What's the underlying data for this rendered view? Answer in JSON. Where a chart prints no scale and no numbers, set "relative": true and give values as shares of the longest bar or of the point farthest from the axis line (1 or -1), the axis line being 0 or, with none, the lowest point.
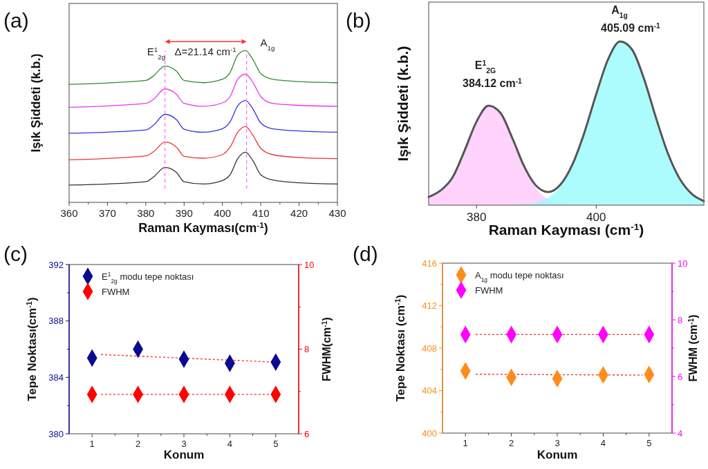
{
  "chart_data": [
    {
      "type": "line",
      "title": "(a)",
      "xlabel": "Raman Kayması(cm$^{-1}$)",
      "ylabel": "Işık Şiddeti (k.b.)",
      "relative": true,
      "xlim": [
        360,
        430
      ],
      "xticks": [
        360,
        {
          "value": 365,
          "label": null
        },
        370,
        {
          "value": 375,
          "label": null
        },
        380,
        {
          "value": 385,
          "label": null
        },
        390,
        {
          "value": 395,
          "label": null
        },
        400,
        {
          "value": 405,
          "label": null
        },
        410,
        {
          "value": 415,
          "label": null
        },
        420,
        {
          "value": 425,
          "label": null
        },
        430
      ],
      "x": [
        360,
        380,
        382,
        385,
        388,
        390,
        395,
        400,
        402,
        404,
        406,
        408,
        410,
        413,
        420,
        430
      ],
      "series": [
        {
          "color": "#333333",
          "values": [
            0.114,
            0.136,
            0.167,
            0.23,
            0.197,
            0.136,
            0.121,
            0.144,
            0.182,
            0.288,
            0.33,
            0.273,
            0.182,
            0.148,
            0.129,
            0.121
          ]
        },
        {
          "color": "#ee3333",
          "values": [
            0.28,
            0.306,
            0.333,
            0.397,
            0.364,
            0.303,
            0.291,
            0.315,
            0.364,
            0.462,
            0.5,
            0.439,
            0.356,
            0.315,
            0.295,
            0.288
          ]
        },
        {
          "color": "#3333dd",
          "values": [
            0.455,
            0.477,
            0.508,
            0.58,
            0.545,
            0.482,
            0.462,
            0.485,
            0.53,
            0.636,
            0.67,
            0.614,
            0.523,
            0.485,
            0.47,
            0.462
          ]
        },
        {
          "color": "#ee33ee",
          "values": [
            0.626,
            0.652,
            0.679,
            0.747,
            0.712,
            0.652,
            0.633,
            0.655,
            0.697,
            0.811,
            0.845,
            0.788,
            0.697,
            0.652,
            0.639,
            0.633
          ]
        },
        {
          "color": "#2e8b2e",
          "values": [
            0.777,
            0.803,
            0.833,
            0.898,
            0.864,
            0.803,
            0.788,
            0.811,
            0.856,
            0.97,
            1,
            0.939,
            0.848,
            0.811,
            0.795,
            0.788
          ]
        }
      ],
      "ref_lines": [
        {
          "axis": "x",
          "value": 385,
          "color": "#ff66ff",
          "line_style": "dashed"
        },
        {
          "axis": "x",
          "value": 406.3,
          "color": "#ff66ff",
          "line_style": "dashed"
        }
      ],
      "annotations": [
        "E$^{1}$$_{2g}$",
        "Δ=21.14 cm$^{-1}$",
        "A$_{1g}$"
      ]
    },
    {
      "type": "area",
      "title": "(b)",
      "xlabel": "Raman Kayması (cm$^{-1}$)",
      "ylabel": "Işık Şiddeti (k.b.)",
      "relative": true,
      "xlim": [
        372,
        418
      ],
      "xticks": [
        380,
        400
      ],
      "x": [
        372,
        374,
        376,
        378,
        380,
        382,
        384,
        386,
        388,
        390,
        392,
        394,
        396,
        398,
        400,
        402,
        404,
        406,
        408,
        410,
        412,
        414,
        416,
        418
      ],
      "series": [
        {
          "color": "#ffc8fa",
          "values": [
            0.05,
            0.09,
            0.17,
            0.333,
            0.51,
            0.607,
            0.563,
            0.407,
            0.229,
            0.101,
            0.034,
            0.009,
            0.002,
            0,
            0,
            0,
            0,
            0,
            0,
            0,
            0,
            0,
            0,
            0
          ]
        },
        {
          "color": "#99fbfc",
          "values": [
            0,
            0,
            0,
            0,
            0,
            0,
            0,
            0.001,
            0.005,
            0.016,
            0.046,
            0.115,
            0.244,
            0.44,
            0.677,
            0.891,
            1,
            0.95,
            0.771,
            0.533,
            0.315,
            0.159,
            0.068,
            0.025
          ]
        },
        {
          "type": "line",
          "color": "#555555",
          "values": [
            0.05,
            0.09,
            0.17,
            0.333,
            0.51,
            0.607,
            0.563,
            0.408,
            0.234,
            0.117,
            0.08,
            0.124,
            0.246,
            0.44,
            0.677,
            0.891,
            1,
            0.95,
            0.771,
            0.533,
            0.315,
            0.159,
            0.068,
            0.025
          ]
        }
      ],
      "annotations": [
        "E$^{1}$$_{2G}$",
        "384.12 cm$^{-1}$",
        "A$_{1g}$",
        "405.09 cm$^{-1}$"
      ]
    },
    {
      "type": "scatter",
      "title": "(c)",
      "xlabel": "Konum",
      "ylabel": "Tepe Noktası(cm$^{-1}$)",
      "y2label": "FWHM(cm$^{-1}$)",
      "legend": "top left",
      "xlim": [
        0.5,
        5.5
      ],
      "xticks": [
        1,
        {
          "value": 1.5,
          "label": null
        },
        2,
        {
          "value": 2.5,
          "label": null
        },
        3,
        {
          "value": 3.5,
          "label": null
        },
        4,
        {
          "value": 4.5,
          "label": null
        },
        5
      ],
      "ylim": [
        380,
        392
      ],
      "yticks": [
        380,
        {
          "value": 382,
          "label": null
        },
        384,
        {
          "value": 386,
          "label": null
        },
        388,
        {
          "value": 390,
          "label": null
        },
        392
      ],
      "y2lim": [
        6,
        10
      ],
      "y2ticks": [
        6,
        {
          "value": 7,
          "label": null
        },
        8,
        {
          "value": 9,
          "label": null
        },
        10
      ],
      "x": [
        1,
        2,
        3,
        4,
        5
      ],
      "series": [
        {
          "name": "E$^{1}$$_{2g}$ modu tepe noktası",
          "color": "#0b0b8f",
          "marker": "diamond",
          "values": [
            385.37,
            386.0,
            385.29,
            385.0,
            385.08
          ]
        },
        {
          "name": "FWHM",
          "color": "#ff0000",
          "axis": "y2",
          "marker": "diamond",
          "values": [
            6.93,
            6.93,
            6.93,
            6.93,
            6.93
          ]
        },
        {
          "type": "line",
          "color": "#ff4d4d",
          "line_style": "dotted",
          "x": [
            1.2,
            4.85
          ],
          "values": [
            385.62,
            385.1
          ]
        },
        {
          "type": "line",
          "color": "#ff4d4d",
          "line_style": "dotted",
          "axis": "y2",
          "x": [
            1.2,
            4.85
          ],
          "values": [
            6.93,
            6.93
          ]
        }
      ]
    },
    {
      "type": "scatter",
      "title": "(d)",
      "xlabel": "Konum",
      "ylabel": "Tepe Noktası (cm$^{-1}$)",
      "y2label": "FWHM (cm$^{-1}$)",
      "legend": "top left",
      "xlim": [
        0.5,
        5.5
      ],
      "xticks": [
        1,
        {
          "value": 1.5,
          "label": null
        },
        2,
        {
          "value": 2.5,
          "label": null
        },
        3,
        {
          "value": 3.5,
          "label": null
        },
        4,
        {
          "value": 4.5,
          "label": null
        },
        5
      ],
      "ylim": [
        400,
        416
      ],
      "yticks": [
        400,
        {
          "value": 402,
          "label": null
        },
        404,
        {
          "value": 406,
          "label": null
        },
        408,
        {
          "value": 410,
          "label": null
        },
        412,
        {
          "value": 414,
          "label": null
        },
        416
      ],
      "y2lim": [
        4,
        10
      ],
      "y2ticks": [
        4,
        {
          "value": 5,
          "label": null
        },
        6,
        {
          "value": 7,
          "label": null
        },
        8,
        {
          "value": 9,
          "label": null
        },
        10
      ],
      "x": [
        1,
        2,
        3,
        4,
        5
      ],
      "series": [
        {
          "name": "A$_{1g}$ modu tepe noktası",
          "color": "#ff8c1a",
          "marker": "diamond",
          "values": [
            405.85,
            405.25,
            405.13,
            405.48,
            405.52
          ]
        },
        {
          "name": "FWHM",
          "color": "#ff00ff",
          "axis": "y2",
          "marker": "diamond",
          "values": [
            7.48,
            7.48,
            7.48,
            7.48,
            7.48
          ]
        },
        {
          "type": "line",
          "color": "#e05050",
          "line_style": "dotted",
          "x": [
            1.23,
            4.85
          ],
          "values": [
            405.54,
            405.46
          ]
        },
        {
          "type": "line",
          "color": "#e05050",
          "line_style": "dotted",
          "axis": "y2",
          "x": [
            1.23,
            4.85
          ],
          "values": [
            7.48,
            7.48
          ]
        }
      ]
    }
  ]
}
